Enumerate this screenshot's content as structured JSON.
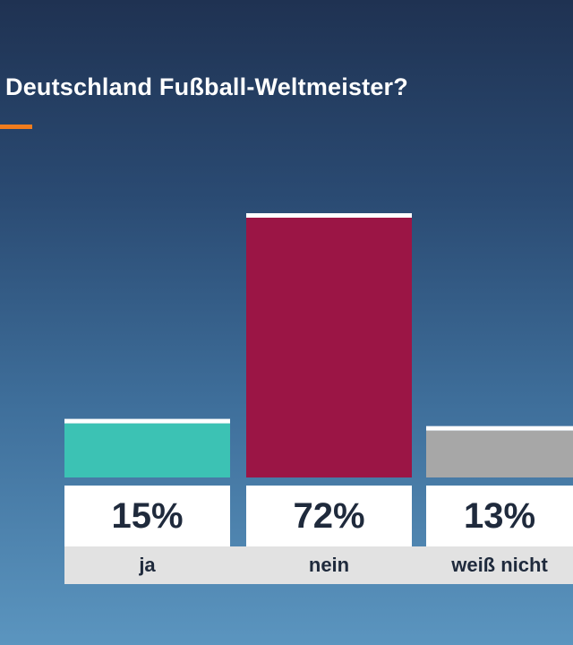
{
  "title": "Deutschland Fußball-Weltmeister?",
  "colors": {
    "accent": "#f07c1e",
    "bar_cap": "#ffffff"
  },
  "chart_data": {
    "type": "bar",
    "title": "Deutschland Fußball-Weltmeister?",
    "categories": [
      "ja",
      "nein",
      "weiß nicht"
    ],
    "values": [
      15,
      72,
      13
    ],
    "value_labels": [
      "15%",
      "72%",
      "13%"
    ],
    "colors": [
      "#3cc2b4",
      "#9b1545",
      "#a7a7a7"
    ],
    "unit": "%",
    "ylim": [
      0,
      100
    ],
    "grid": false,
    "legend": "none"
  }
}
